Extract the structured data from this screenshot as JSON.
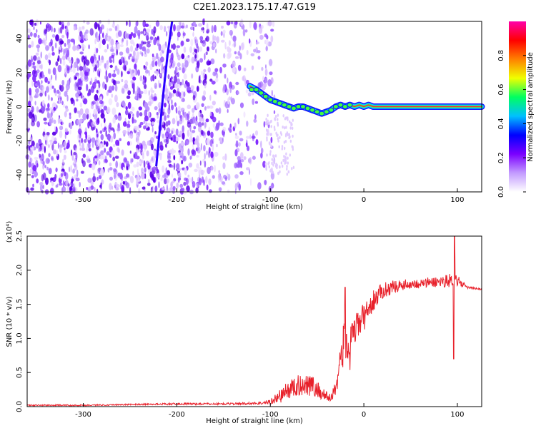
{
  "title": "C2E1.2023.175.17.47.G19",
  "colors": {
    "snr_line": "#e8202a",
    "track_core": "#ff2a2a",
    "scatter_light": "#d7b8ff",
    "scatter_dark": "#5a00e6"
  },
  "chart_data": [
    {
      "type": "heatmap",
      "name": "spectrogram",
      "xlabel": "Height of straight line (km)",
      "ylabel": "Frequency (Hz)",
      "xlim": [
        -360,
        126
      ],
      "ylim": [
        -50,
        50
      ],
      "xticks": [
        -300,
        -200,
        -100,
        0,
        100
      ],
      "yticks": [
        -40,
        -20,
        0,
        20,
        40
      ],
      "colorbar": {
        "label": "Normalized spectral amplitude",
        "range": [
          0,
          1
        ],
        "ticks": [
          "0.0",
          "0.2",
          "0.4",
          "0.6",
          "0.8"
        ],
        "colormap": [
          "#ffffff",
          "#c39bff",
          "#7b00ff",
          "#0000ff",
          "#00c0ff",
          "#00ff60",
          "#f0ff00",
          "#ff8000",
          "#ff0000",
          "#ff00aa"
        ]
      },
      "carrier_track": {
        "x": [
          -122,
          -115,
          -110,
          -105,
          -100,
          -95,
          -90,
          -85,
          -80,
          -75,
          -70,
          -65,
          -60,
          -55,
          -50,
          -45,
          -40,
          -35,
          -30,
          -25,
          -20,
          -15,
          -10,
          -5,
          0,
          5,
          10,
          50,
          90,
          100,
          126
        ],
        "y": [
          12,
          10,
          8,
          6,
          4,
          3,
          2,
          1,
          0,
          -1,
          0,
          0,
          -1,
          -2,
          -3,
          -4,
          -3,
          -2,
          0,
          1,
          0,
          1,
          0,
          1,
          0,
          1,
          0,
          0,
          0,
          0,
          0
        ]
      },
      "diagonal_streak": {
        "x": [
          -222,
          -215,
          -210,
          -205
        ],
        "y": [
          -35,
          5,
          30,
          50
        ]
      }
    },
    {
      "type": "line",
      "name": "snr",
      "xlabel": "Height of straight line (km)",
      "ylabel": "SNR (10 * v/v)",
      "scale_label": "(x10⁴)",
      "xlim": [
        -360,
        126
      ],
      "ylim": [
        0,
        2.5
      ],
      "xticks": [
        -300,
        -200,
        -100,
        0,
        100
      ],
      "yticks": [
        "0.0",
        "0.5",
        "1.0",
        "1.5",
        "2.0",
        "2.5"
      ],
      "x": [
        -360,
        -300,
        -250,
        -200,
        -150,
        -110,
        -100,
        -90,
        -80,
        -70,
        -60,
        -50,
        -40,
        -35,
        -30,
        -25,
        -20,
        -18,
        -15,
        -10,
        -5,
        0,
        10,
        20,
        30,
        40,
        50,
        60,
        70,
        80,
        90,
        95,
        97,
        100,
        110,
        126
      ],
      "y": [
        0.02,
        0.02,
        0.03,
        0.04,
        0.04,
        0.05,
        0.07,
        0.15,
        0.25,
        0.3,
        0.35,
        0.25,
        0.15,
        0.12,
        0.3,
        0.7,
        1.0,
        0.9,
        0.8,
        1.1,
        1.25,
        1.3,
        1.55,
        1.7,
        1.75,
        1.78,
        1.8,
        1.8,
        1.82,
        1.83,
        1.85,
        1.86,
        1.9,
        1.85,
        1.75,
        1.72
      ],
      "noise_amplitude": [
        0.01,
        0.01,
        0.01,
        0.015,
        0.015,
        0.02,
        0.04,
        0.1,
        0.14,
        0.16,
        0.18,
        0.14,
        0.08,
        0.06,
        0.15,
        0.25,
        0.35,
        0.4,
        0.35,
        0.25,
        0.22,
        0.2,
        0.15,
        0.12,
        0.1,
        0.08,
        0.07,
        0.07,
        0.08,
        0.08,
        0.1,
        0.1,
        0.1,
        0.08,
        0.02,
        0.01
      ],
      "spikes": [
        [
          -20,
          1.75
        ],
        [
          97,
          2.5
        ],
        [
          96,
          0.7
        ]
      ]
    }
  ]
}
